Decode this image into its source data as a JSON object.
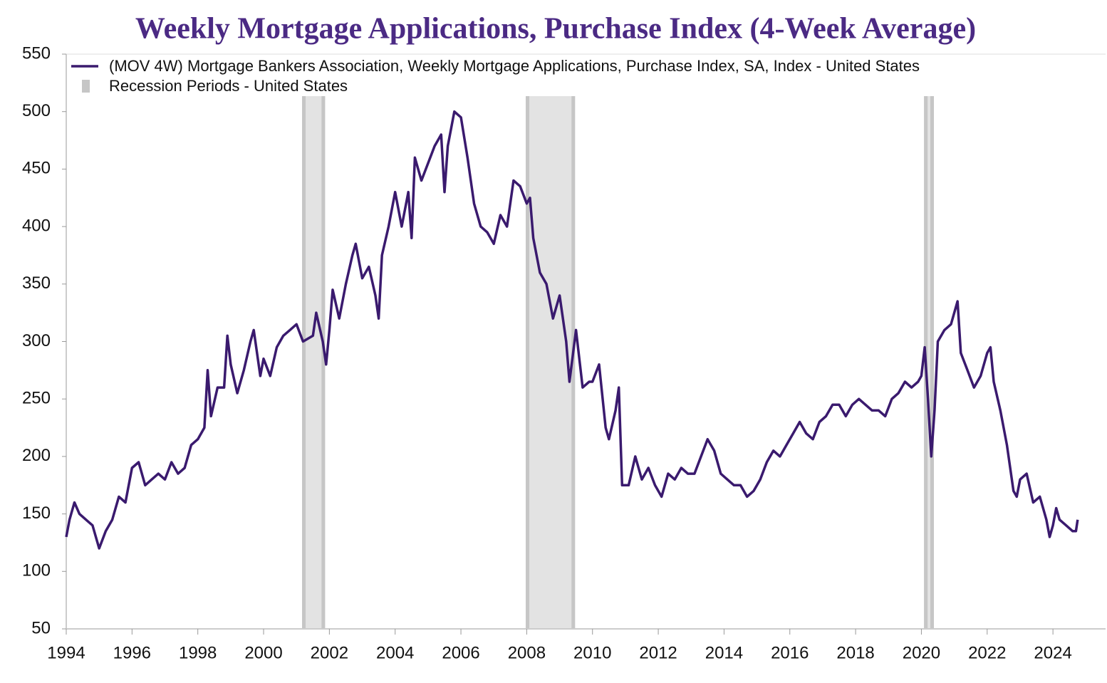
{
  "chart_data": {
    "type": "line",
    "title": "Weekly Mortgage Applications, Purchase Index (4-Week Average)",
    "series": [
      {
        "name": "(MOV 4W) Mortgage Bankers Association, Weekly Mortgage Applications, Purchase Index, SA, Index - United States",
        "color": "#3a1a6e",
        "x": [
          1994.0,
          1994.1,
          1994.25,
          1994.4,
          1994.6,
          1994.8,
          1995.0,
          1995.2,
          1995.4,
          1995.6,
          1995.8,
          1996.0,
          1996.2,
          1996.4,
          1996.6,
          1996.8,
          1997.0,
          1997.2,
          1997.4,
          1997.6,
          1997.8,
          1998.0,
          1998.2,
          1998.3,
          1998.4,
          1998.6,
          1998.8,
          1998.9,
          1999.0,
          1999.2,
          1999.4,
          1999.6,
          1999.7,
          1999.9,
          2000.0,
          2000.2,
          2000.4,
          2000.6,
          2000.8,
          2001.0,
          2001.2,
          2001.5,
          2001.6,
          2001.8,
          2001.9,
          2002.0,
          2002.1,
          2002.3,
          2002.5,
          2002.7,
          2002.8,
          2003.0,
          2003.2,
          2003.4,
          2003.5,
          2003.6,
          2003.8,
          2004.0,
          2004.2,
          2004.4,
          2004.5,
          2004.6,
          2004.8,
          2005.0,
          2005.2,
          2005.4,
          2005.5,
          2005.6,
          2005.8,
          2006.0,
          2006.2,
          2006.4,
          2006.6,
          2006.8,
          2007.0,
          2007.2,
          2007.4,
          2007.6,
          2007.8,
          2008.0,
          2008.1,
          2008.2,
          2008.4,
          2008.6,
          2008.8,
          2009.0,
          2009.2,
          2009.3,
          2009.5,
          2009.7,
          2009.9,
          2010.0,
          2010.2,
          2010.4,
          2010.5,
          2010.7,
          2010.8,
          2010.9,
          2011.1,
          2011.3,
          2011.5,
          2011.7,
          2011.9,
          2012.1,
          2012.3,
          2012.5,
          2012.7,
          2012.9,
          2013.1,
          2013.3,
          2013.5,
          2013.7,
          2013.9,
          2014.1,
          2014.3,
          2014.5,
          2014.7,
          2014.9,
          2015.1,
          2015.3,
          2015.5,
          2015.7,
          2015.9,
          2016.1,
          2016.3,
          2016.5,
          2016.7,
          2016.9,
          2017.1,
          2017.3,
          2017.5,
          2017.7,
          2017.9,
          2018.1,
          2018.3,
          2018.5,
          2018.7,
          2018.9,
          2019.1,
          2019.3,
          2019.5,
          2019.7,
          2019.9,
          2020.0,
          2020.1,
          2020.2,
          2020.3,
          2020.4,
          2020.5,
          2020.7,
          2020.9,
          2021.0,
          2021.1,
          2021.2,
          2021.4,
          2021.6,
          2021.8,
          2022.0,
          2022.1,
          2022.2,
          2022.4,
          2022.6,
          2022.8,
          2022.9,
          2023.0,
          2023.2,
          2023.4,
          2023.6,
          2023.8,
          2023.9,
          2024.0,
          2024.1,
          2024.2,
          2024.4,
          2024.6,
          2024.7,
          2024.75
        ],
        "values": [
          130,
          145,
          160,
          150,
          145,
          140,
          120,
          135,
          145,
          165,
          160,
          190,
          195,
          175,
          180,
          185,
          180,
          195,
          185,
          190,
          210,
          215,
          225,
          275,
          235,
          260,
          260,
          305,
          280,
          255,
          275,
          300,
          310,
          270,
          285,
          270,
          295,
          305,
          310,
          315,
          300,
          305,
          325,
          300,
          280,
          310,
          345,
          320,
          350,
          375,
          385,
          355,
          365,
          340,
          320,
          375,
          400,
          430,
          400,
          430,
          390,
          460,
          440,
          455,
          470,
          480,
          430,
          470,
          500,
          495,
          460,
          420,
          400,
          395,
          385,
          410,
          400,
          440,
          435,
          420,
          425,
          390,
          360,
          350,
          320,
          340,
          300,
          265,
          310,
          260,
          265,
          265,
          280,
          225,
          215,
          240,
          260,
          175,
          175,
          200,
          180,
          190,
          175,
          165,
          185,
          180,
          190,
          185,
          185,
          200,
          215,
          205,
          185,
          180,
          175,
          175,
          165,
          170,
          180,
          195,
          205,
          200,
          210,
          220,
          230,
          220,
          215,
          230,
          235,
          245,
          245,
          235,
          245,
          250,
          245,
          240,
          240,
          235,
          250,
          255,
          265,
          260,
          265,
          270,
          295,
          250,
          200,
          240,
          300,
          310,
          315,
          325,
          335,
          290,
          275,
          260,
          270,
          290,
          295,
          265,
          240,
          210,
          170,
          165,
          180,
          185,
          160,
          165,
          145,
          130,
          140,
          155,
          145,
          140,
          135,
          135,
          145
        ]
      }
    ],
    "recession_name": "Recession Periods - United States",
    "recessions": [
      [
        2001.17,
        2001.87
      ],
      [
        2007.97,
        2009.47
      ],
      [
        2020.08,
        2020.38
      ]
    ],
    "xlim": [
      1994,
      2025.6
    ],
    "ylim": [
      50,
      550
    ],
    "xticks": [
      1994,
      1996,
      1998,
      2000,
      2002,
      2004,
      2006,
      2008,
      2010,
      2012,
      2014,
      2016,
      2018,
      2020,
      2022,
      2024
    ],
    "yticks": [
      50,
      100,
      150,
      200,
      250,
      300,
      350,
      400,
      450,
      500,
      550
    ],
    "grid": false
  }
}
